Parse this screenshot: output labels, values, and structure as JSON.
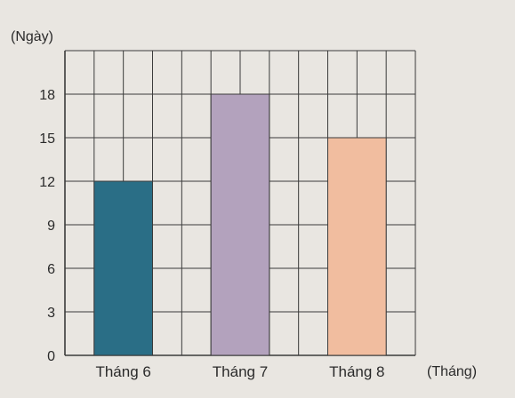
{
  "chart_data": {
    "type": "bar",
    "categories": [
      "Tháng 6",
      "Tháng 7",
      "Tháng 8"
    ],
    "values": [
      12,
      18,
      15
    ],
    "ylabel": "(Ngày)",
    "xlabel": "(Tháng)",
    "yticks": [
      0,
      3,
      6,
      9,
      12,
      15,
      18
    ],
    "ylim": [
      0,
      21
    ],
    "grid": true,
    "colors": [
      "#2a6e86",
      "#b3a2bd",
      "#f1bd9f"
    ]
  }
}
